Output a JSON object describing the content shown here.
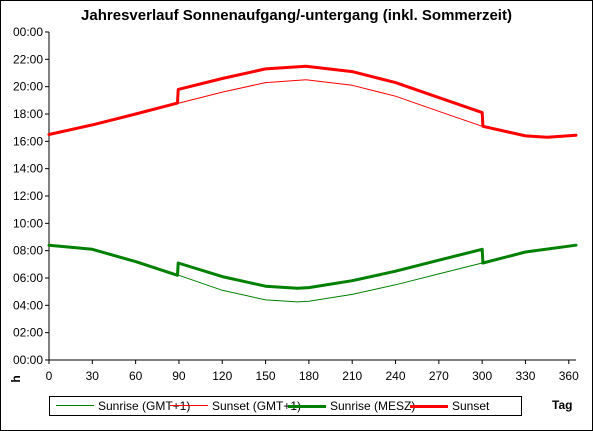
{
  "chart_data": {
    "type": "line",
    "title": "Jahresverlauf Sonnenaufgang/-untergang (inkl. Sommerzeit)",
    "xlabel": "Tag",
    "ylabel": "h",
    "xlim": [
      0,
      365
    ],
    "ylim": [
      0,
      24
    ],
    "x_ticks": [
      0,
      30,
      60,
      90,
      120,
      150,
      180,
      210,
      240,
      270,
      300,
      330,
      360
    ],
    "y_ticks": [
      "00:00",
      "02:00",
      "04:00",
      "06:00",
      "08:00",
      "10:00",
      "12:00",
      "14:00",
      "16:00",
      "18:00",
      "20:00",
      "22:00",
      "00:00"
    ],
    "grid": false,
    "legend_position": "bottom",
    "dst_period_days": [
      89,
      300
    ],
    "series": [
      {
        "name": "Sunrise (GMT+1)",
        "color": "#008000",
        "line_style": "thin",
        "x": [
          0,
          30,
          60,
          90,
          120,
          150,
          172,
          180,
          210,
          240,
          270,
          300,
          330,
          365
        ],
        "y": [
          8.4,
          8.1,
          7.2,
          6.2,
          5.1,
          4.4,
          4.25,
          4.3,
          4.8,
          5.5,
          6.3,
          7.1,
          7.9,
          8.4
        ]
      },
      {
        "name": "Sunset (GMT+1)",
        "color": "#ff0000",
        "line_style": "thin",
        "x": [
          0,
          30,
          60,
          90,
          120,
          150,
          178,
          210,
          240,
          270,
          300,
          330,
          345,
          365
        ],
        "y": [
          16.5,
          17.2,
          18.0,
          18.8,
          19.6,
          20.3,
          20.5,
          20.1,
          19.3,
          18.2,
          17.1,
          16.4,
          16.3,
          16.45
        ]
      },
      {
        "name": "Sunrise (MESZ)",
        "color": "#008000",
        "line_style": "thick",
        "x": [
          0,
          30,
          60,
          89,
          89.5,
          120,
          150,
          172,
          180,
          210,
          240,
          270,
          300,
          300.5,
          330,
          365
        ],
        "y": [
          8.4,
          8.1,
          7.2,
          6.2,
          7.1,
          6.1,
          5.4,
          5.25,
          5.3,
          5.8,
          6.5,
          7.3,
          8.1,
          7.1,
          7.9,
          8.4
        ]
      },
      {
        "name": "Sunset",
        "color": "#ff0000",
        "line_style": "thick",
        "x": [
          0,
          30,
          60,
          89,
          89.5,
          120,
          150,
          178,
          210,
          240,
          270,
          300,
          300.5,
          330,
          345,
          365
        ],
        "y": [
          16.5,
          17.2,
          18.0,
          18.8,
          19.8,
          20.6,
          21.3,
          21.5,
          21.1,
          20.3,
          19.2,
          18.1,
          17.1,
          16.4,
          16.3,
          16.45
        ]
      }
    ]
  }
}
